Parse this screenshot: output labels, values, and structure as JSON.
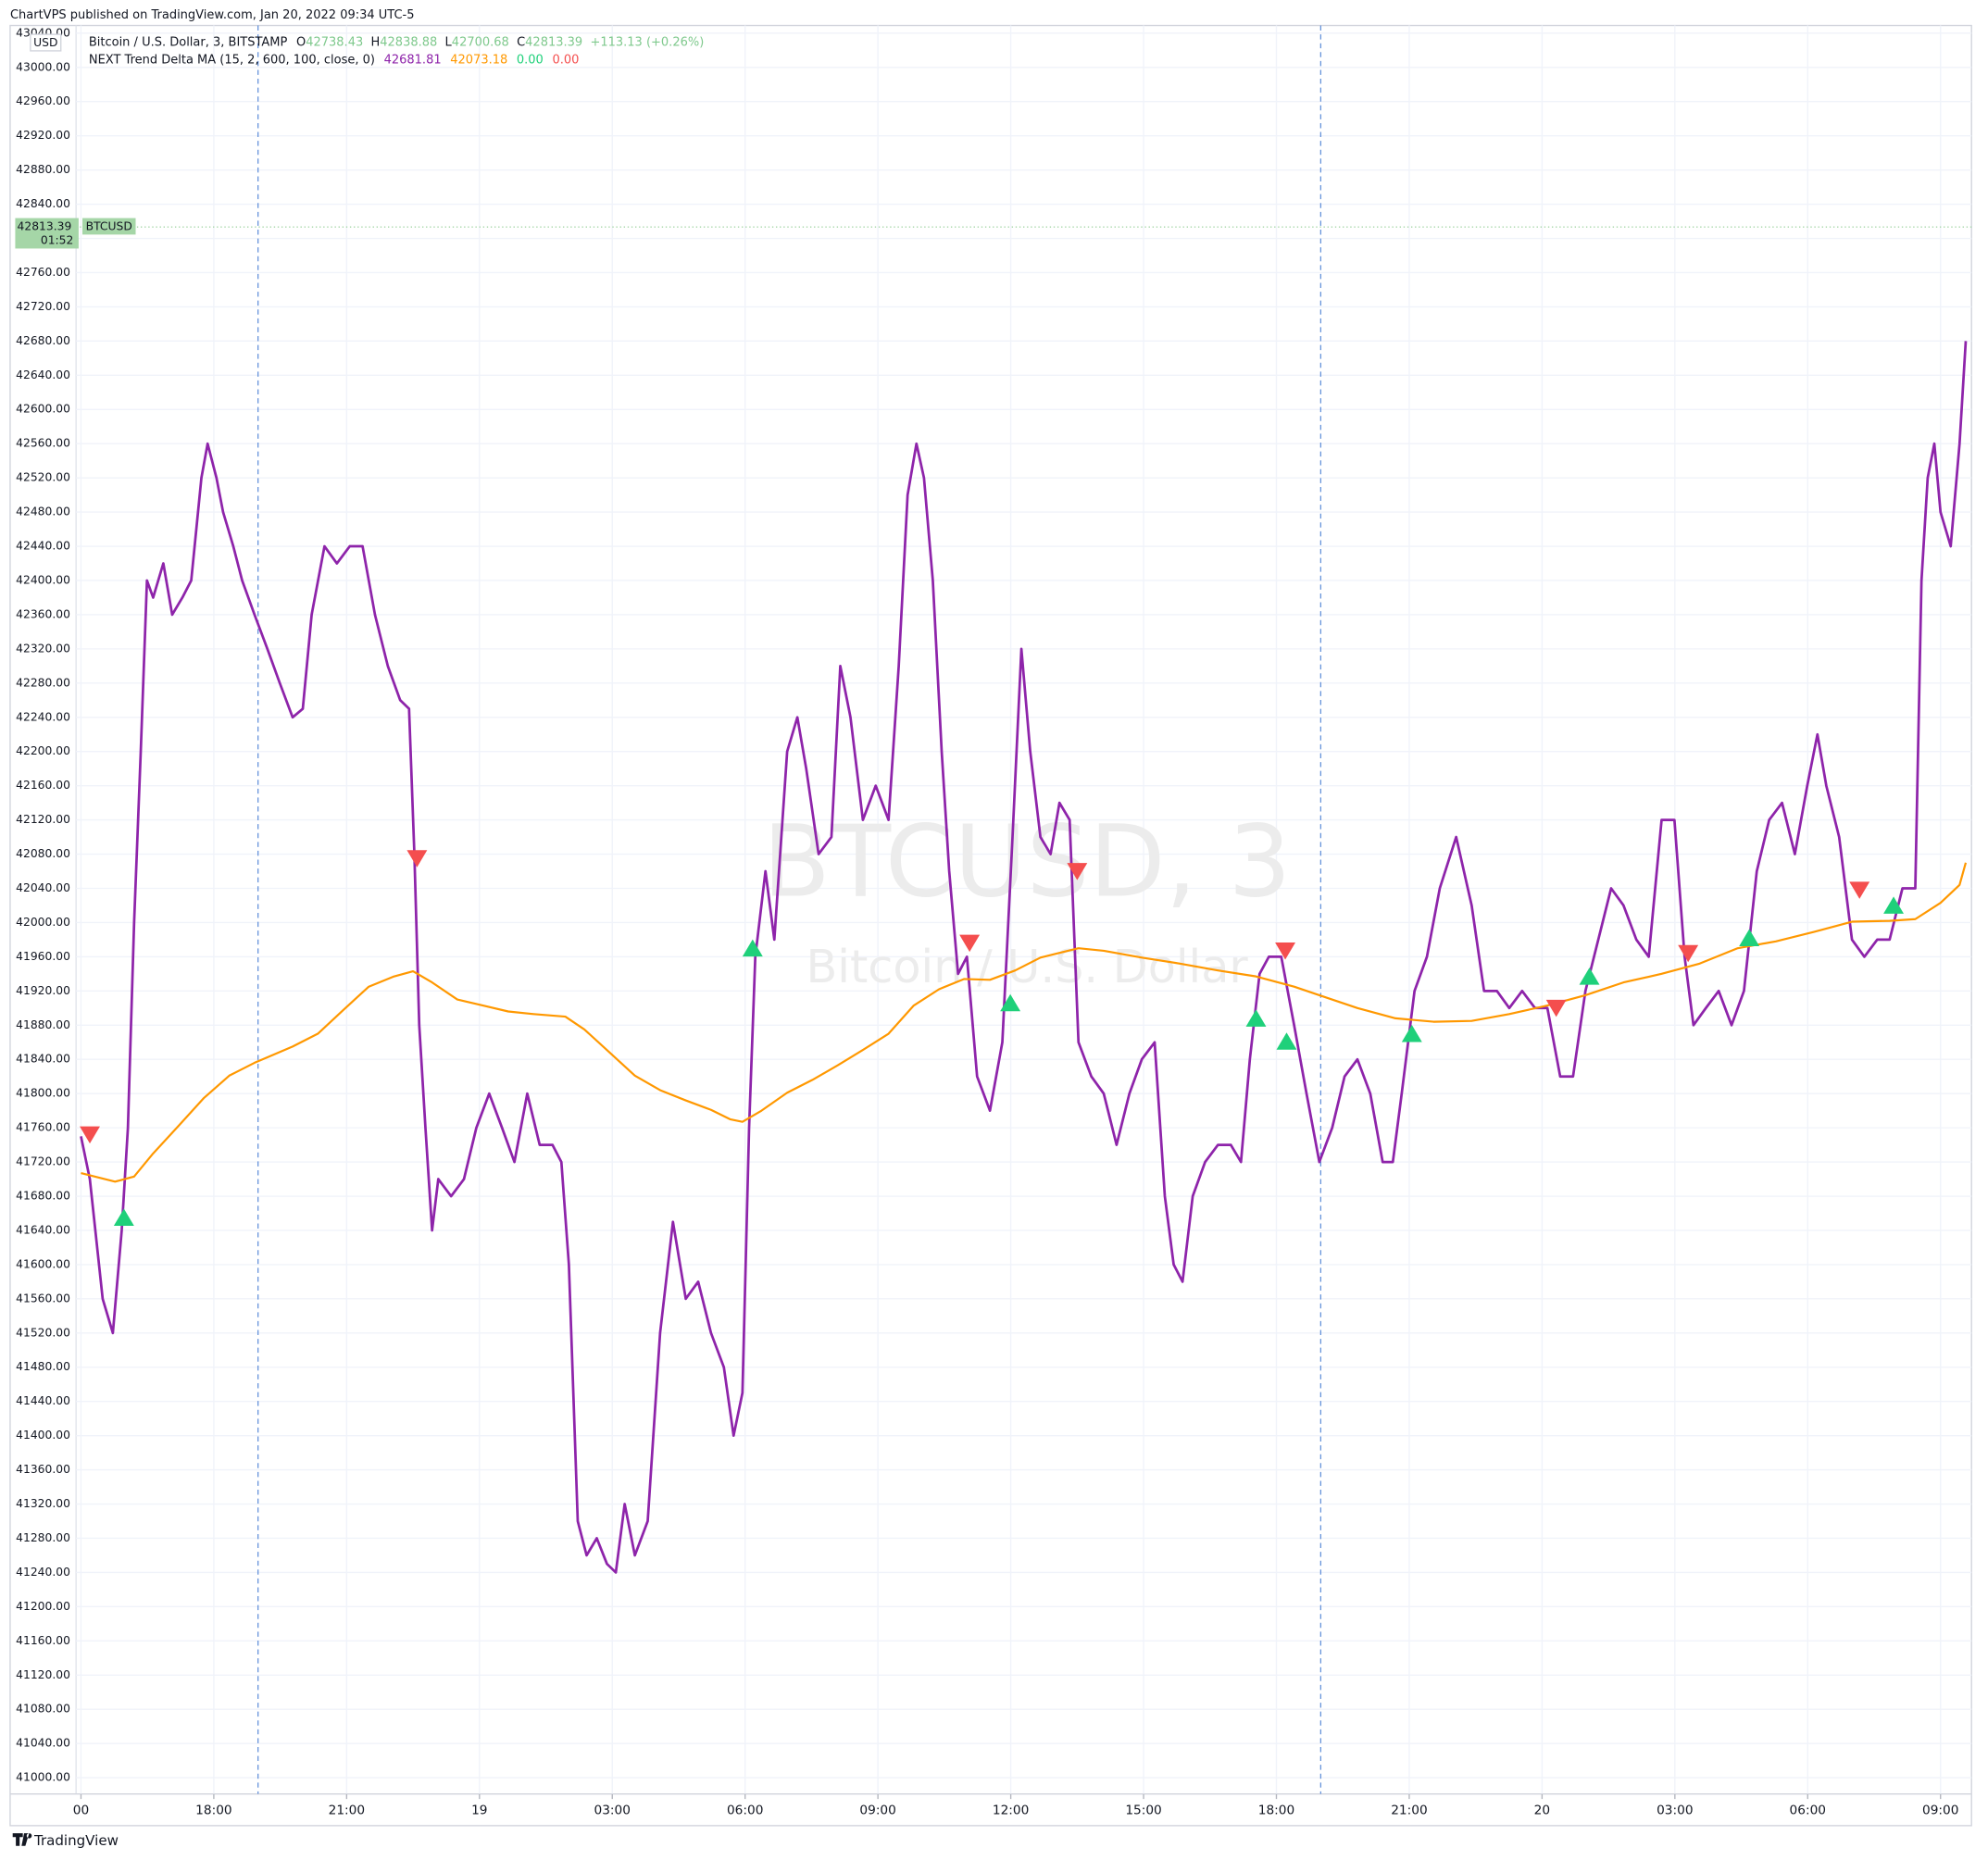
{
  "header": {
    "publisher": "ChartVPS published on TradingView.com, Jan 20, 2022 09:34 UTC-5",
    "currency": "USD",
    "footer": "TradingView"
  },
  "legend": {
    "symbol": "Bitcoin / U.S. Dollar, 3, BITSTAMP",
    "o_label": "O",
    "open": 42738.43,
    "h_label": "H",
    "high": 42838.88,
    "l_label": "L",
    "low": 42700.68,
    "c_label": "C",
    "close": 42813.39,
    "change": "+113.13 (+0.26%)",
    "indicator": "NEXT Trend Delta MA (15, 2, 600, 100, close, 0)",
    "ind_v1": 42681.81,
    "ind_v2": 42073.18,
    "ind_v3": "0.00",
    "ind_v4": "0.00"
  },
  "watermark": {
    "line1": "BTCUSD, 3",
    "line2": "Bitcoin / U.S. Dollar"
  },
  "price_tag": {
    "price": 42813.39,
    "price_label": "42813.39",
    "countdown": "01:52",
    "symbol": "BTCUSD"
  },
  "chart_data": {
    "type": "line",
    "xlim": [
      13.4,
      57.7
    ],
    "ylim": [
      40981,
      43049
    ],
    "grid": true,
    "xticks": [
      {
        "value": 15,
        "label": "00"
      },
      {
        "value": 18,
        "label": "18:00"
      },
      {
        "value": 21,
        "label": "21:00"
      },
      {
        "value": 24,
        "label": "19"
      },
      {
        "value": 27,
        "label": "03:00"
      },
      {
        "value": 30,
        "label": "06:00"
      },
      {
        "value": 33,
        "label": "09:00"
      },
      {
        "value": 36,
        "label": "12:00"
      },
      {
        "value": 39,
        "label": "15:00"
      },
      {
        "value": 42,
        "label": "18:00"
      },
      {
        "value": 45,
        "label": "21:00"
      },
      {
        "value": 48,
        "label": "20"
      },
      {
        "value": 51,
        "label": "03:00"
      },
      {
        "value": 54,
        "label": "06:00"
      },
      {
        "value": 57,
        "label": "09:00"
      }
    ],
    "session_breaks": [
      19,
      43
    ],
    "yticks": [
      {
        "value": 41000,
        "label": "41000.00"
      },
      {
        "value": 41040,
        "label": "41040.00"
      },
      {
        "value": 41080,
        "label": "41080.00"
      },
      {
        "value": 41120,
        "label": "41120.00"
      },
      {
        "value": 41160,
        "label": "41160.00"
      },
      {
        "value": 41200,
        "label": "41200.00"
      },
      {
        "value": 41240,
        "label": "41240.00"
      },
      {
        "value": 41280,
        "label": "41280.00"
      },
      {
        "value": 41320,
        "label": "41320.00"
      },
      {
        "value": 41360,
        "label": "41360.00"
      },
      {
        "value": 41400,
        "label": "41400.00"
      },
      {
        "value": 41440,
        "label": "41440.00"
      },
      {
        "value": 41480,
        "label": "41480.00"
      },
      {
        "value": 41520,
        "label": "41520.00"
      },
      {
        "value": 41560,
        "label": "41560.00"
      },
      {
        "value": 41600,
        "label": "41600.00"
      },
      {
        "value": 41640,
        "label": "41640.00"
      },
      {
        "value": 41680,
        "label": "41680.00"
      },
      {
        "value": 41720,
        "label": "41720.00"
      },
      {
        "value": 41760,
        "label": "41760.00"
      },
      {
        "value": 41800,
        "label": "41800.00"
      },
      {
        "value": 41840,
        "label": "41840.00"
      },
      {
        "value": 41880,
        "label": "41880.00"
      },
      {
        "value": 41920,
        "label": "41920.00"
      },
      {
        "value": 41960,
        "label": "41960.00"
      },
      {
        "value": 42000,
        "label": "42000.00"
      },
      {
        "value": 42040,
        "label": "42040.00"
      },
      {
        "value": 42080,
        "label": "42080.00"
      },
      {
        "value": 42120,
        "label": "42120.00"
      },
      {
        "value": 42160,
        "label": "42160.00"
      },
      {
        "value": 42200,
        "label": "42200.00"
      },
      {
        "value": 42240,
        "label": "42240.00"
      },
      {
        "value": 42280,
        "label": "42280.00"
      },
      {
        "value": 42320,
        "label": "42320.00"
      },
      {
        "value": 42360,
        "label": "42360.00"
      },
      {
        "value": 42400,
        "label": "42400.00"
      },
      {
        "value": 42440,
        "label": "42440.00"
      },
      {
        "value": 42480,
        "label": "42480.00"
      },
      {
        "value": 42520,
        "label": "42520.00"
      },
      {
        "value": 42560,
        "label": "42560.00"
      },
      {
        "value": 42600,
        "label": "42600.00"
      },
      {
        "value": 42640,
        "label": "42640.00"
      },
      {
        "value": 42680,
        "label": "42680.00"
      },
      {
        "value": 42720,
        "label": "42720.00"
      },
      {
        "value": 42760,
        "label": "42760.00"
      },
      {
        "value": 42800,
        "label": "42800.00"
      },
      {
        "value": 42840,
        "label": "42840.00"
      },
      {
        "value": 42880,
        "label": "42880.00"
      },
      {
        "value": 42920,
        "label": "42920.00"
      },
      {
        "value": 42960,
        "label": "42960.00"
      },
      {
        "value": 43000,
        "label": "43000.00"
      },
      {
        "value": 43040,
        "label": "43040.00"
      }
    ],
    "series": [
      {
        "color": "#8e24aa",
        "x": [
          15.0,
          15.2,
          15.49,
          15.72,
          15.92,
          16.06,
          16.2,
          16.35,
          16.49,
          16.63,
          16.86,
          17.06,
          17.29,
          17.49,
          17.72,
          17.86,
          18.06,
          18.21,
          18.44,
          18.64,
          18.92,
          19.21,
          19.49,
          19.78,
          20.01,
          20.21,
          20.5,
          20.78,
          21.07,
          21.36,
          21.64,
          21.93,
          22.21,
          22.41,
          22.53,
          22.64,
          22.78,
          22.93,
          23.07,
          23.36,
          23.65,
          23.93,
          24.22,
          24.51,
          24.79,
          25.08,
          25.36,
          25.65,
          25.85,
          26.02,
          26.22,
          26.42,
          26.65,
          26.88,
          27.08,
          27.28,
          27.51,
          27.8,
          28.08,
          28.37,
          28.66,
          28.94,
          29.23,
          29.52,
          29.74,
          29.94,
          30.09,
          30.23,
          30.46,
          30.66,
          30.95,
          31.18,
          31.38,
          31.66,
          31.95,
          32.15,
          32.38,
          32.66,
          32.95,
          33.24,
          33.47,
          33.67,
          33.87,
          34.04,
          34.24,
          34.44,
          34.61,
          34.81,
          35.01,
          35.24,
          35.53,
          35.81,
          36.04,
          36.24,
          36.44,
          36.67,
          36.9,
          37.1,
          37.33,
          37.53,
          37.82,
          38.1,
          38.39,
          38.68,
          38.96,
          39.25,
          39.48,
          39.68,
          39.88,
          40.11,
          40.39,
          40.68,
          40.97,
          41.2,
          41.4,
          41.62,
          41.83,
          42.11,
          42.4,
          42.68,
          42.97,
          43.26,
          43.54,
          43.83,
          44.12,
          44.4,
          44.63,
          44.83,
          45.12,
          45.4,
          45.69,
          46.06,
          46.41,
          46.69,
          46.98,
          47.26,
          47.55,
          47.84,
          48.12,
          48.41,
          48.7,
          48.98,
          49.27,
          49.56,
          49.84,
          50.13,
          50.41,
          50.7,
          50.99,
          51.22,
          51.42,
          51.7,
          51.99,
          52.28,
          52.56,
          52.85,
          53.13,
          53.42,
          53.71,
          53.99,
          54.22,
          54.42,
          54.71,
          55.0,
          55.28,
          55.57,
          55.85,
          56.14,
          56.43,
          56.57,
          56.71,
          56.86,
          57.0,
          57.23,
          57.43,
          57.57
        ],
        "values": [
          41750,
          41700,
          41560,
          41520,
          41640,
          41760,
          42000,
          42200,
          42400,
          42380,
          42420,
          42360,
          42380,
          42400,
          42520,
          42560,
          42520,
          42480,
          42440,
          42400,
          42360,
          42320,
          42280,
          42240,
          42250,
          42360,
          42440,
          42420,
          42440,
          42440,
          42360,
          42300,
          42260,
          42250,
          42080,
          41880,
          41760,
          41640,
          41700,
          41680,
          41700,
          41760,
          41800,
          41760,
          41720,
          41800,
          41740,
          41740,
          41720,
          41600,
          41300,
          41260,
          41280,
          41250,
          41240,
          41320,
          41260,
          41300,
          41520,
          41650,
          41560,
          41580,
          41520,
          41480,
          41400,
          41450,
          41760,
          41960,
          42060,
          41980,
          42200,
          42240,
          42180,
          42080,
          42100,
          42300,
          42240,
          42120,
          42160,
          42120,
          42300,
          42500,
          42560,
          42520,
          42400,
          42200,
          42060,
          41940,
          41960,
          41820,
          41780,
          41860,
          42100,
          42320,
          42200,
          42100,
          42080,
          42140,
          42120,
          41860,
          41820,
          41800,
          41740,
          41800,
          41840,
          41860,
          41680,
          41600,
          41580,
          41680,
          41720,
          41740,
          41740,
          41720,
          41840,
          41940,
          41960,
          41960,
          41880,
          41800,
          41720,
          41760,
          41820,
          41840,
          41800,
          41720,
          41720,
          41800,
          41920,
          41960,
          42040,
          42100,
          42020,
          41920,
          41920,
          41900,
          41920,
          41900,
          41900,
          41820,
          41820,
          41920,
          41980,
          42040,
          42020,
          41980,
          41960,
          42120,
          42120,
          41960,
          41880,
          41900,
          41920,
          41880,
          41920,
          42060,
          42120,
          42140,
          42080,
          42160,
          42220,
          42160,
          42100,
          41980,
          41960,
          41980,
          41980,
          42040,
          42040,
          42400,
          42520,
          42560,
          42480,
          42440,
          42560,
          42680
        ]
      },
      {
        "color": "#ff9800",
        "x": [
          15.0,
          15.77,
          16.2,
          16.63,
          17.2,
          17.78,
          18.35,
          18.92,
          19.78,
          20.35,
          20.93,
          21.5,
          22.07,
          22.5,
          22.93,
          23.5,
          24.08,
          24.65,
          25.22,
          25.94,
          26.37,
          26.94,
          27.51,
          28.08,
          28.66,
          29.23,
          29.66,
          29.94,
          30.37,
          30.95,
          31.52,
          32.09,
          32.66,
          33.24,
          33.81,
          34.38,
          34.95,
          35.53,
          36.1,
          36.67,
          37.53,
          38.1,
          38.96,
          39.82,
          40.68,
          41.54,
          42.4,
          42.97,
          43.83,
          44.69,
          45.55,
          46.41,
          47.26,
          48.12,
          48.98,
          49.84,
          50.7,
          51.56,
          52.42,
          53.28,
          54.14,
          55.0,
          55.85,
          56.43,
          57.0,
          57.43,
          57.57
        ],
        "values": [
          41707,
          41697,
          41703,
          41730,
          41762,
          41795,
          41821,
          41836,
          41855,
          41870,
          41898,
          41925,
          41937,
          41943,
          41930,
          41910,
          41903,
          41896,
          41893,
          41890,
          41875,
          41848,
          41821,
          41804,
          41792,
          41781,
          41770,
          41767,
          41780,
          41801,
          41816,
          41833,
          41851,
          41870,
          41903,
          41922,
          41934,
          41933,
          41944,
          41959,
          41970,
          41967,
          41959,
          41952,
          41944,
          41937,
          41925,
          41915,
          41900,
          41888,
          41884,
          41885,
          41893,
          41903,
          41915,
          41930,
          41940,
          41952,
          41970,
          41978,
          41989,
          42001,
          42002,
          42004,
          42023,
          42044,
          42070
        ]
      }
    ],
    "buy_signals": {
      "color": "#1fd07a",
      "x": [
        15.97,
        30.17,
        35.99,
        41.54,
        42.23,
        45.06,
        49.07,
        52.68,
        55.94
      ],
      "values": [
        41652,
        41967,
        41903,
        41885,
        41858,
        41867,
        41934,
        41979,
        42017
      ]
    },
    "sell_signals": {
      "color": "#f44e4e",
      "x": [
        15.2,
        22.59,
        35.07,
        37.5,
        42.2,
        48.32,
        51.3,
        55.17
      ],
      "values": [
        41755,
        42078,
        41979,
        42063,
        41970,
        41903,
        41967,
        42041
      ]
    }
  }
}
